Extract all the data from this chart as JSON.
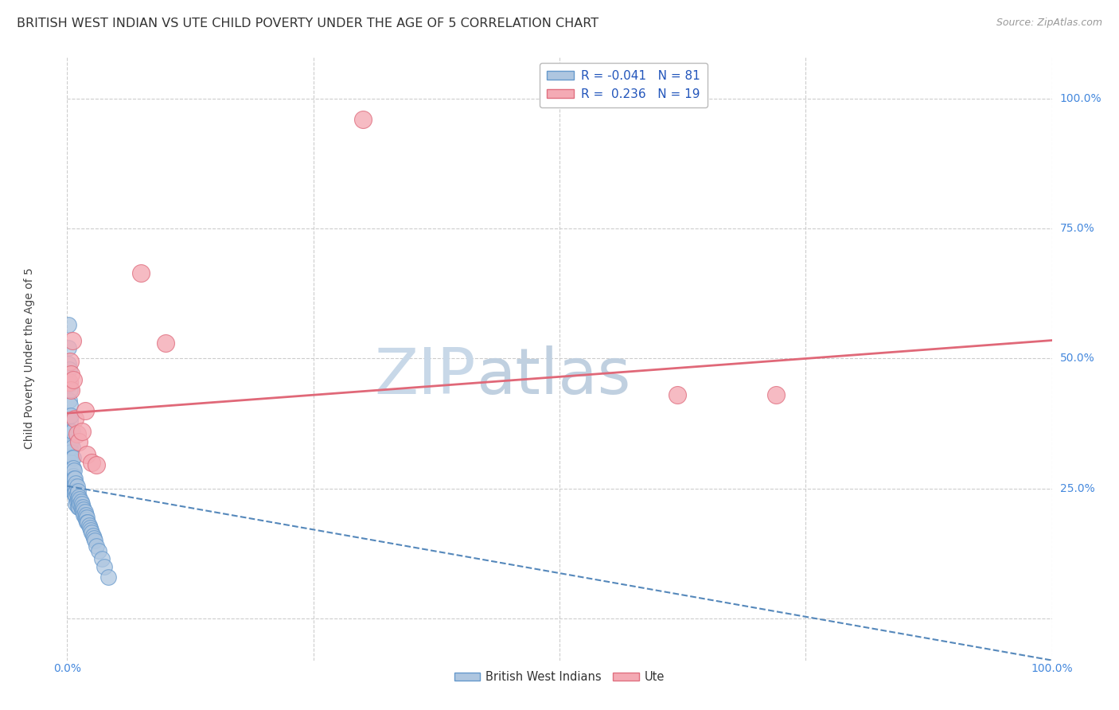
{
  "title": "BRITISH WEST INDIAN VS UTE CHILD POVERTY UNDER THE AGE OF 5 CORRELATION CHART",
  "source": "Source: ZipAtlas.com",
  "ylabel": "Child Poverty Under the Age of 5",
  "ytick_labels": [
    "100.0%",
    "75.0%",
    "50.0%",
    "25.0%"
  ],
  "ytick_positions": [
    1.0,
    0.75,
    0.5,
    0.25
  ],
  "xlim": [
    0.0,
    1.0
  ],
  "ylim": [
    -0.08,
    1.08
  ],
  "legend_blue_label": "R = -0.041   N = 81",
  "legend_pink_label": "R =  0.236   N = 19",
  "legend_bottom_blue": "British West Indians",
  "legend_bottom_pink": "Ute",
  "watermark_zip": "ZIP",
  "watermark_atlas": "atlas",
  "blue_line_x0": 0.0,
  "blue_line_x1": 1.0,
  "blue_line_y0": 0.255,
  "blue_line_y1": -0.08,
  "pink_line_x0": 0.0,
  "pink_line_x1": 1.0,
  "pink_line_y0": 0.395,
  "pink_line_y1": 0.535,
  "scatter_blue_color": "#aec6e0",
  "scatter_blue_edge": "#6699cc",
  "scatter_pink_color": "#f4aab4",
  "scatter_pink_edge": "#e07080",
  "line_blue_color": "#5588bb",
  "line_pink_color": "#e06878",
  "grid_color": "#cccccc",
  "background_color": "#ffffff",
  "title_fontsize": 11.5,
  "source_fontsize": 9,
  "axis_label_fontsize": 10,
  "tick_fontsize": 10,
  "watermark_color_zip": "#c8d8e8",
  "watermark_color_atlas": "#c0d0e0",
  "watermark_fontsize": 58,
  "bwi_x": [
    0.001,
    0.001,
    0.001,
    0.001,
    0.002,
    0.002,
    0.002,
    0.002,
    0.002,
    0.003,
    0.003,
    0.003,
    0.003,
    0.003,
    0.003,
    0.004,
    0.004,
    0.004,
    0.004,
    0.004,
    0.004,
    0.005,
    0.005,
    0.005,
    0.005,
    0.005,
    0.005,
    0.006,
    0.006,
    0.006,
    0.006,
    0.006,
    0.007,
    0.007,
    0.007,
    0.007,
    0.008,
    0.008,
    0.008,
    0.009,
    0.009,
    0.009,
    0.009,
    0.01,
    0.01,
    0.01,
    0.011,
    0.011,
    0.011,
    0.012,
    0.012,
    0.012,
    0.013,
    0.013,
    0.014,
    0.014,
    0.015,
    0.015,
    0.016,
    0.016,
    0.017,
    0.017,
    0.018,
    0.018,
    0.019,
    0.019,
    0.02,
    0.02,
    0.021,
    0.022,
    0.023,
    0.024,
    0.025,
    0.026,
    0.027,
    0.028,
    0.03,
    0.032,
    0.035,
    0.038,
    0.042
  ],
  "bwi_y": [
    0.565,
    0.52,
    0.49,
    0.455,
    0.48,
    0.45,
    0.42,
    0.39,
    0.36,
    0.44,
    0.41,
    0.38,
    0.355,
    0.33,
    0.31,
    0.39,
    0.36,
    0.34,
    0.32,
    0.3,
    0.28,
    0.36,
    0.33,
    0.31,
    0.29,
    0.275,
    0.26,
    0.31,
    0.29,
    0.275,
    0.26,
    0.245,
    0.285,
    0.27,
    0.255,
    0.24,
    0.27,
    0.255,
    0.24,
    0.26,
    0.245,
    0.235,
    0.22,
    0.255,
    0.24,
    0.225,
    0.245,
    0.23,
    0.215,
    0.235,
    0.225,
    0.215,
    0.23,
    0.22,
    0.225,
    0.215,
    0.22,
    0.21,
    0.215,
    0.205,
    0.21,
    0.2,
    0.205,
    0.195,
    0.2,
    0.19,
    0.195,
    0.185,
    0.185,
    0.18,
    0.175,
    0.17,
    0.165,
    0.16,
    0.155,
    0.15,
    0.14,
    0.13,
    0.115,
    0.1,
    0.08
  ],
  "ute_x": [
    0.002,
    0.003,
    0.004,
    0.004,
    0.005,
    0.006,
    0.008,
    0.01,
    0.012,
    0.015,
    0.018,
    0.02,
    0.025,
    0.03,
    0.075,
    0.1,
    0.62,
    0.72,
    0.3
  ],
  "ute_y": [
    0.455,
    0.495,
    0.47,
    0.44,
    0.535,
    0.46,
    0.385,
    0.355,
    0.34,
    0.36,
    0.4,
    0.315,
    0.3,
    0.295,
    0.665,
    0.53,
    0.43,
    0.43,
    0.96
  ]
}
